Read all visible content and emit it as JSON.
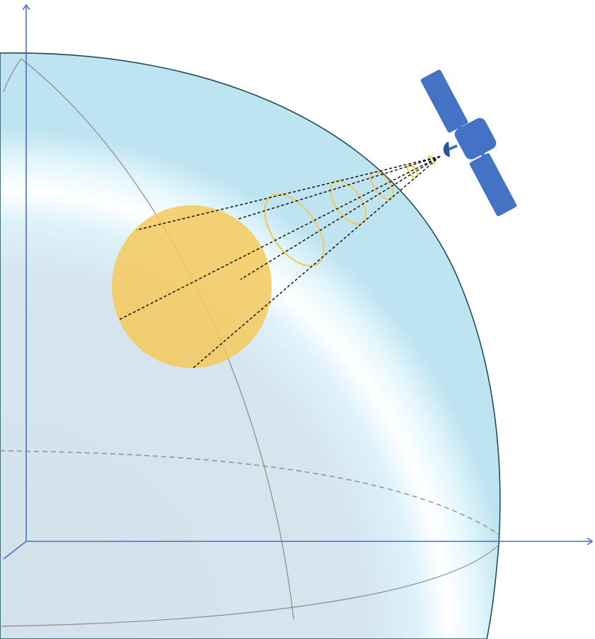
{
  "diagram": {
    "colors": {
      "axis": "#4472C4",
      "globe_fill_inner": "#d6e4ef",
      "globe_fill_edge": "#ffffff",
      "globe_outline": "#1f4e5a",
      "grid_line": "#7f7f7f",
      "footprint": "#f5c95a",
      "beam_ring": "#f2c94c",
      "beam_line": "#111111",
      "satellite_body": "#4472C4",
      "satellite_dark": "#2f5597"
    },
    "icons": {
      "satellite": "satellite-icon",
      "coverage": "coverage-footprint-icon"
    }
  }
}
